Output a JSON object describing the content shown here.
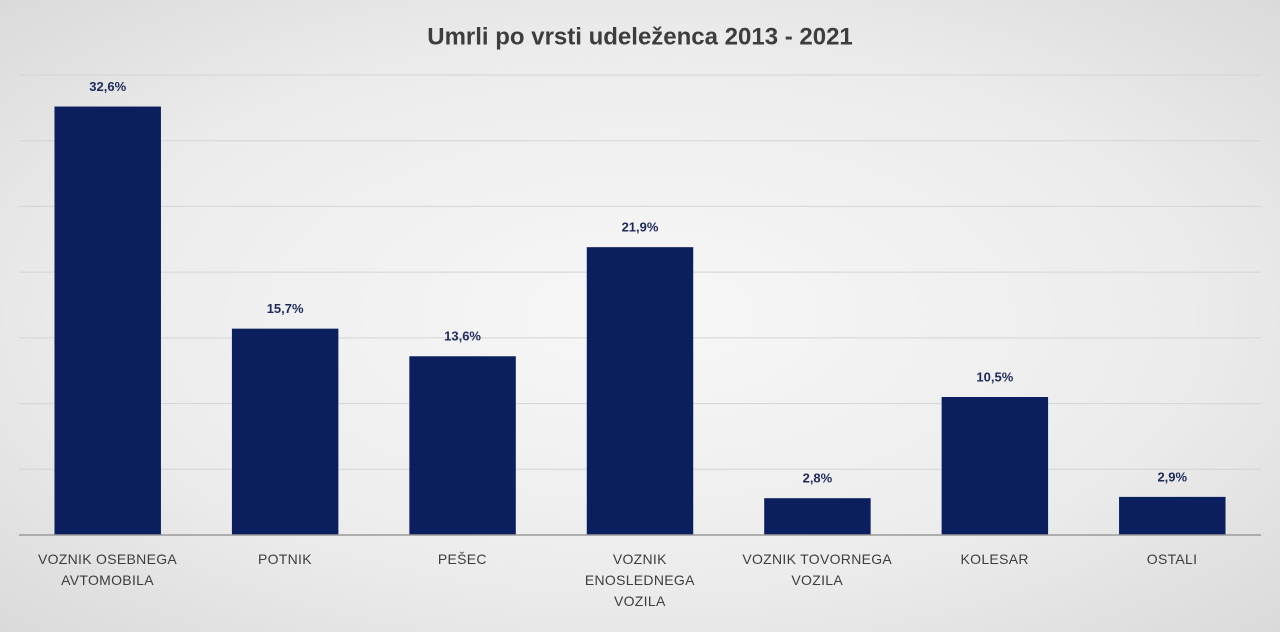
{
  "chart_data": {
    "type": "bar",
    "title": "Umrli po vrsti udeleženca 2013 - 2021",
    "categories": [
      "VOZNIK OSEBNEGA\nAVTOMOBILA",
      "POTNIK",
      "PEŠEC",
      "VOZNIK\nENOSLEDNEGA\nVOZILA",
      "VOZNIK TOVORNEGA\nVOZILA",
      "KOLESAR",
      "OSTALI"
    ],
    "values": [
      32.6,
      15.7,
      13.6,
      21.9,
      2.8,
      10.5,
      2.9
    ],
    "value_labels": [
      "32,6%",
      "15,7%",
      "13,6%",
      "21,9%",
      "2,8%",
      "10,5%",
      "2,9%"
    ],
    "color": "#0b1f5e",
    "ylim": [
      0,
      35
    ],
    "yticks": [
      0,
      5,
      10,
      15,
      20,
      25,
      30,
      35
    ],
    "grid": true
  }
}
